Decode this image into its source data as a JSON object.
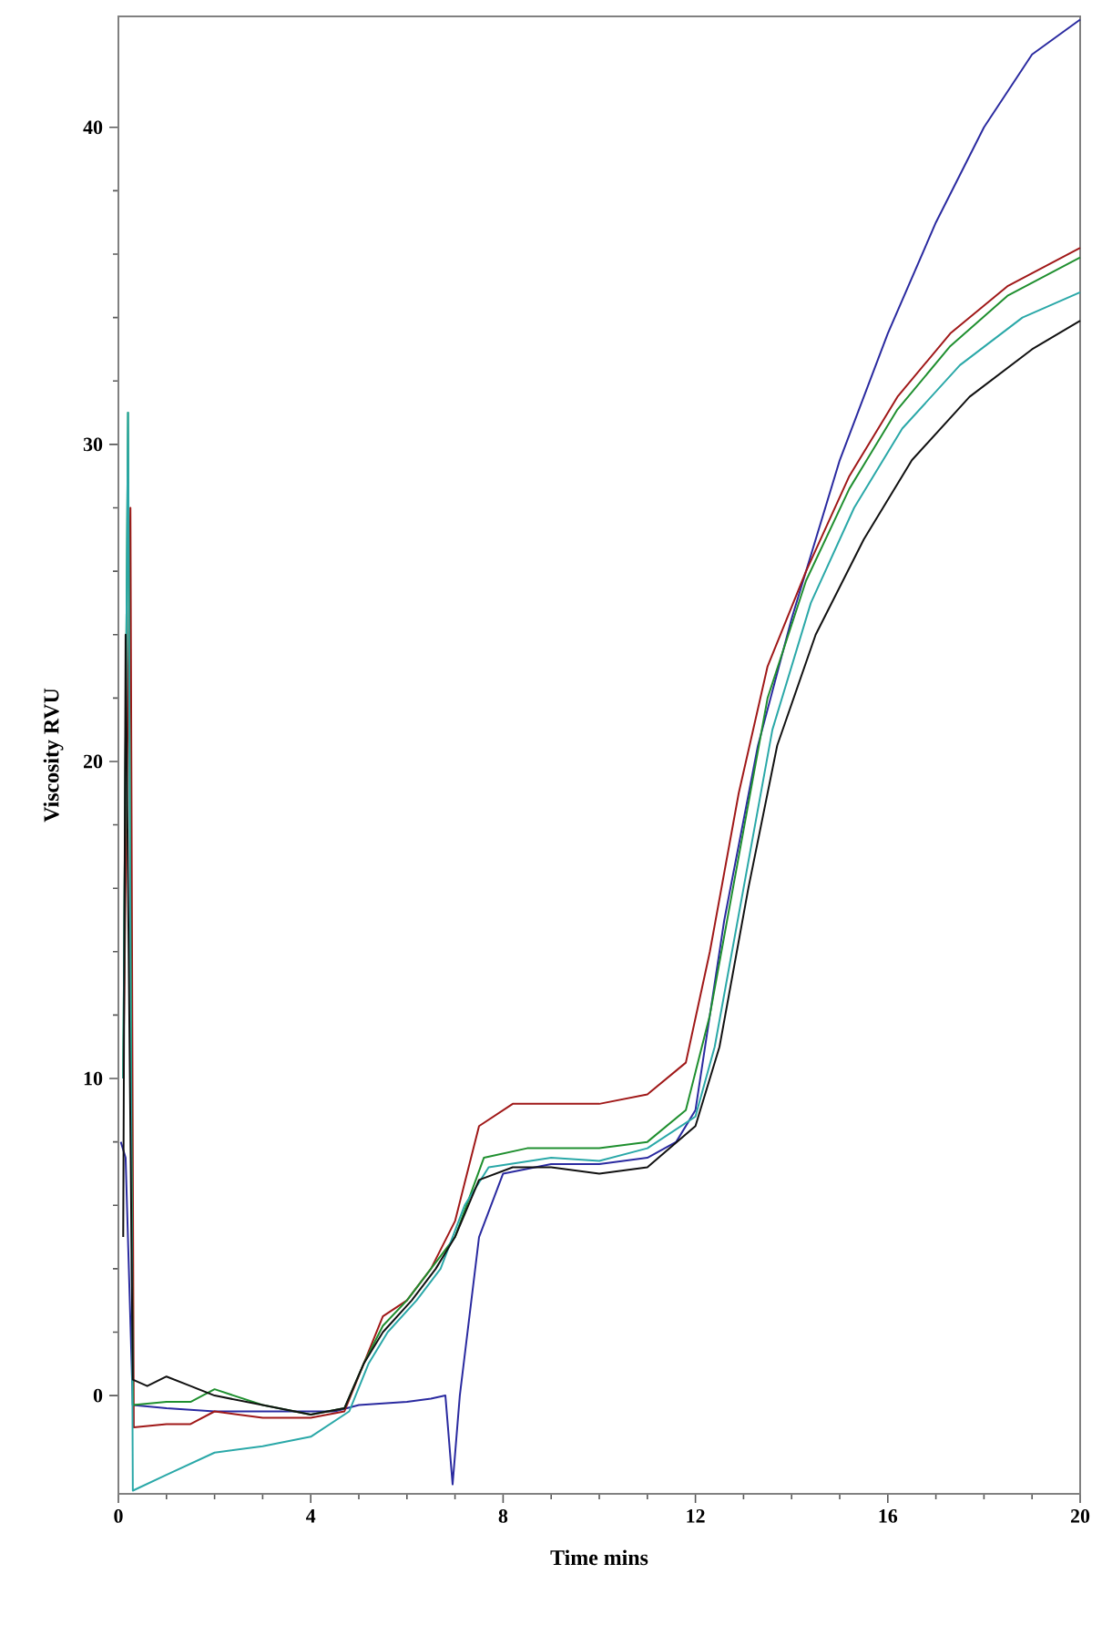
{
  "chart_data": {
    "type": "line",
    "xlabel": "Time mins",
    "ylabel": "Viscosity RVU",
    "xlim": [
      0,
      20
    ],
    "ylim": [
      -3.1,
      43.5
    ],
    "xticks": [
      0,
      4,
      8,
      12,
      16,
      20
    ],
    "yticks": [
      0,
      10,
      20,
      30,
      40
    ],
    "series": [
      {
        "color": "#2a2aa0",
        "x": [
          0.05,
          0.15,
          0.3,
          1,
          2,
          3,
          4,
          4.5,
          5,
          6,
          6.5,
          6.8,
          6.95,
          7.1,
          7.5,
          8,
          9,
          10,
          11,
          11.6,
          12,
          12.6,
          13.3,
          14,
          15,
          16,
          17,
          18,
          19,
          20
        ],
        "values": [
          8,
          7.5,
          -0.3,
          -0.4,
          -0.5,
          -0.5,
          -0.5,
          -0.5,
          -0.3,
          -0.2,
          -0.1,
          0,
          -2.8,
          0,
          5,
          7,
          7.3,
          7.3,
          7.5,
          8,
          9,
          15,
          20.5,
          24.5,
          29.5,
          33.5,
          37,
          40,
          42.3,
          43.4
        ]
      },
      {
        "color": "#a01818",
        "x": [
          0.1,
          0.25,
          0.32,
          1,
          1.5,
          2,
          3,
          4,
          4.7,
          5.1,
          5.5,
          6,
          6.5,
          7,
          7.5,
          8.2,
          9,
          10,
          11,
          11.8,
          12.3,
          12.9,
          13.5,
          14.3,
          15.2,
          16.2,
          17.3,
          18.5,
          20
        ],
        "values": [
          10,
          28,
          -1,
          -0.9,
          -0.9,
          -0.5,
          -0.7,
          -0.7,
          -0.5,
          1,
          2.5,
          3,
          4,
          5.5,
          8.5,
          9.2,
          9.2,
          9.2,
          9.5,
          10.5,
          14,
          19,
          23,
          26,
          29,
          31.5,
          33.5,
          35,
          36.2
        ]
      },
      {
        "color": "#1f8f2f",
        "x": [
          0.1,
          0.2,
          0.3,
          1,
          1.5,
          2,
          3,
          4,
          4.7,
          5.1,
          5.5,
          6,
          6.5,
          7,
          7.6,
          8.5,
          10,
          11,
          11.8,
          12.3,
          12.9,
          13.5,
          14.3,
          15.2,
          16.2,
          17.3,
          18.5,
          20
        ],
        "values": [
          10,
          31,
          -0.3,
          -0.2,
          -0.2,
          0.2,
          -0.3,
          -0.6,
          -0.4,
          1,
          2.2,
          3,
          4,
          5,
          7.5,
          7.8,
          7.8,
          8,
          9,
          12,
          17,
          22,
          25.7,
          28.6,
          31.1,
          33.1,
          34.7,
          35.9
        ]
      },
      {
        "color": "#2aa8a8",
        "x": [
          0.1,
          0.2,
          0.3,
          1,
          2,
          3,
          4,
          4.8,
          5.2,
          5.6,
          6.2,
          6.7,
          7.2,
          7.7,
          9,
          10,
          11,
          12,
          12.4,
          13,
          13.6,
          14.4,
          15.3,
          16.3,
          17.5,
          18.8,
          20
        ],
        "values": [
          10,
          31,
          -3,
          -2.5,
          -1.8,
          -1.6,
          -1.3,
          -0.5,
          1,
          2,
          3,
          4,
          6,
          7.2,
          7.5,
          7.4,
          7.8,
          8.8,
          11,
          16,
          21,
          25,
          28,
          30.5,
          32.5,
          34,
          34.8
        ]
      },
      {
        "color": "#111111",
        "x": [
          0.1,
          0.15,
          0.3,
          0.6,
          1,
          1.5,
          2,
          3,
          4,
          4.7,
          5.1,
          5.5,
          6.1,
          6.6,
          7,
          7.5,
          8.2,
          9,
          10,
          11,
          12,
          12.5,
          13.1,
          13.7,
          14.5,
          15.5,
          16.5,
          17.7,
          19,
          20
        ],
        "values": [
          5,
          24,
          0.5,
          0.3,
          0.6,
          0.3,
          0,
          -0.3,
          -0.6,
          -0.4,
          1,
          2,
          3,
          4,
          5,
          6.8,
          7.2,
          7.2,
          7,
          7.2,
          8.5,
          11,
          16,
          20.5,
          24,
          27,
          29.5,
          31.5,
          33,
          33.9
        ]
      }
    ]
  }
}
